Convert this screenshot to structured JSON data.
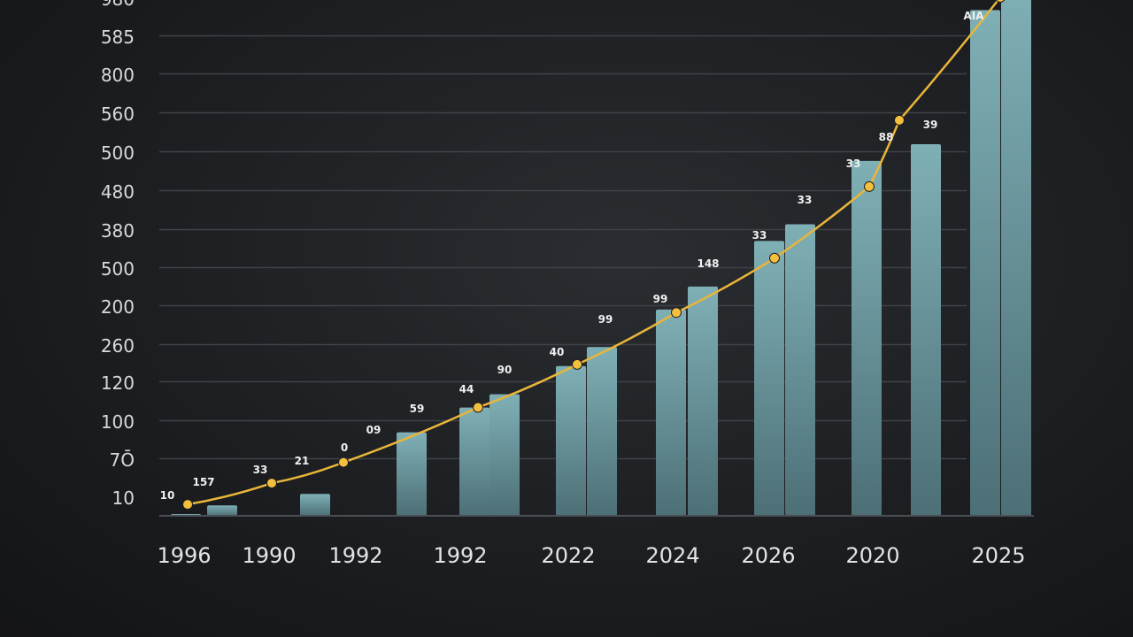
{
  "chart_data": {
    "type": "bar",
    "ylim": [
      0,
      900
    ],
    "ytick_labels": [
      "10",
      "7Ō",
      "100",
      "120",
      "260",
      "200",
      "500",
      "380",
      "480",
      "500",
      "560",
      "800",
      "585",
      "980"
    ],
    "xtick_labels": [
      "1996",
      "1990",
      "1992",
      "1992",
      "2022",
      "2024",
      "2026",
      "2020",
      "2025"
    ],
    "bars": [
      {
        "values": [
          3,
          18
        ]
      },
      {
        "values": [
          38
        ]
      },
      {
        "values": [
          145
        ]
      },
      {
        "values": [
          188,
          211
        ]
      },
      {
        "values": [
          260,
          293
        ]
      },
      {
        "values": [
          358,
          398
        ]
      },
      {
        "values": [
          477,
          506
        ]
      },
      {
        "values": [
          616
        ]
      },
      {
        "values": [
          645
        ]
      },
      {
        "values": [
          878,
          920
        ]
      }
    ],
    "line_points": [
      {
        "x": 1,
        "y": 22
      },
      {
        "x": 2,
        "y": 63
      },
      {
        "x": 3,
        "y": 103
      },
      {
        "x": 4,
        "y": 209
      },
      {
        "x": 5,
        "y": 292
      },
      {
        "x": 6,
        "y": 392
      },
      {
        "x": 7,
        "y": 497
      },
      {
        "x": 8,
        "y": 635
      },
      {
        "x": 9,
        "y": 763
      },
      {
        "x": 10,
        "y": 1000
      }
    ],
    "data_labels": [
      "10",
      "157",
      "33",
      "21",
      "0",
      "09",
      "59",
      "44",
      "90",
      "40",
      "99",
      "99",
      "148",
      "33",
      "33",
      "33",
      "88",
      "39",
      "AIA"
    ],
    "series_color": "#6e9ba2",
    "line_color": "#e9b53a",
    "grid": true
  }
}
